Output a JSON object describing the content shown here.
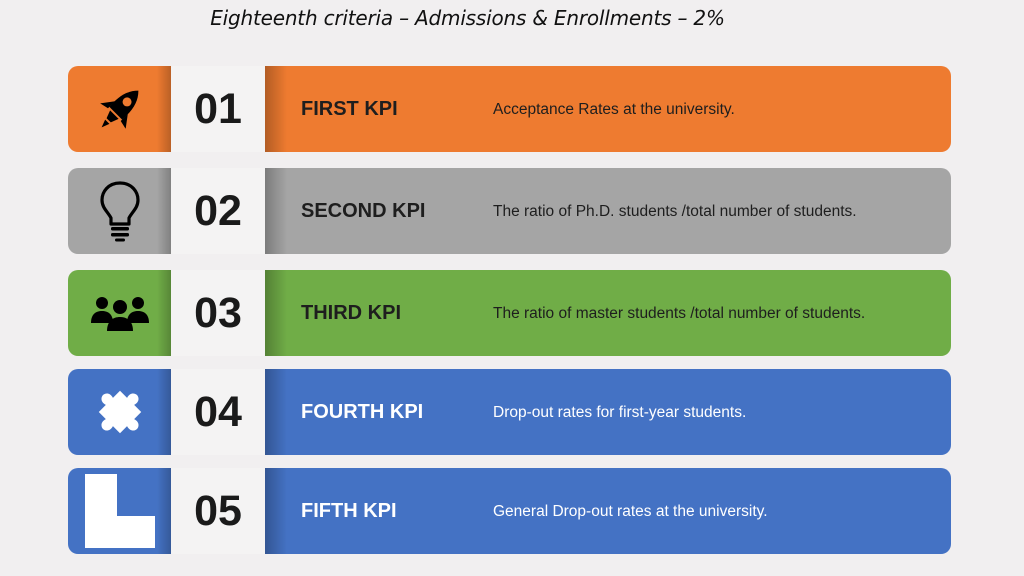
{
  "title": "Eighteenth criteria – Admissions & Enrollments – 2%",
  "rows": [
    {
      "icon": "rocket-icon",
      "number": "01",
      "label": "FIRST KPI",
      "description": "Acceptance Rates at the university.",
      "color": "#ee7b30"
    },
    {
      "icon": "lightbulb-icon",
      "number": "02",
      "label": "SECOND KPI",
      "description": "The ratio of Ph.D. students /total number of students.",
      "color": "#a5a5a5"
    },
    {
      "icon": "people-group-icon",
      "number": "03",
      "label": "THIRD KPI",
      "description": "The ratio of master students /total number of students.",
      "color": "#70ad47"
    },
    {
      "icon": "puzzle-piece-icon",
      "number": "04",
      "label": "FOURTH KPI",
      "description": "Drop-out rates for first-year students.",
      "color": "#4472c4"
    },
    {
      "icon": "l-shape-icon",
      "number": "05",
      "label": "FIFTH KPI",
      "description": "General Drop-out rates at the university.",
      "color": "#4472c4"
    }
  ]
}
